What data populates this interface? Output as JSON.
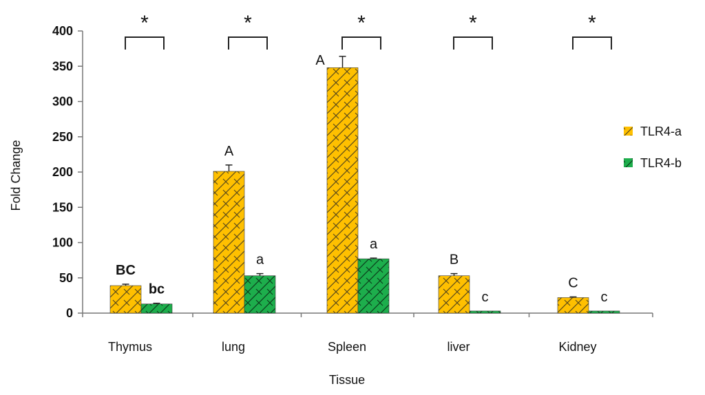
{
  "chart_data": {
    "type": "bar",
    "categories": [
      "Thymus",
      "lung",
      "Spleen",
      "liver",
      "Kidney"
    ],
    "series": [
      {
        "name": "TLR4-a",
        "color": "#FFC000",
        "hatch_color": "#5a4a1a",
        "values": [
          39,
          201,
          348,
          53,
          22
        ],
        "errors": [
          2,
          9,
          16,
          3,
          1
        ],
        "letters": [
          "BC",
          "A",
          "A",
          "B",
          "C"
        ]
      },
      {
        "name": "TLR4-b",
        "color": "#1DAE4C",
        "hatch_color": "#0b3d1c",
        "values": [
          13,
          53,
          77,
          3,
          3
        ],
        "errors": [
          1,
          3,
          1,
          0,
          0
        ],
        "letters": [
          "bc",
          "a",
          "a",
          "c",
          "c"
        ]
      }
    ],
    "significance": [
      "*",
      "*",
      "*",
      "*",
      "*"
    ],
    "xlabel": "Tissue",
    "ylabel": "Fold Change",
    "ylim": [
      0,
      400
    ],
    "yticks": [
      0,
      50,
      100,
      150,
      200,
      250,
      300,
      350,
      400
    ],
    "grid": false,
    "legend_position": "right"
  }
}
